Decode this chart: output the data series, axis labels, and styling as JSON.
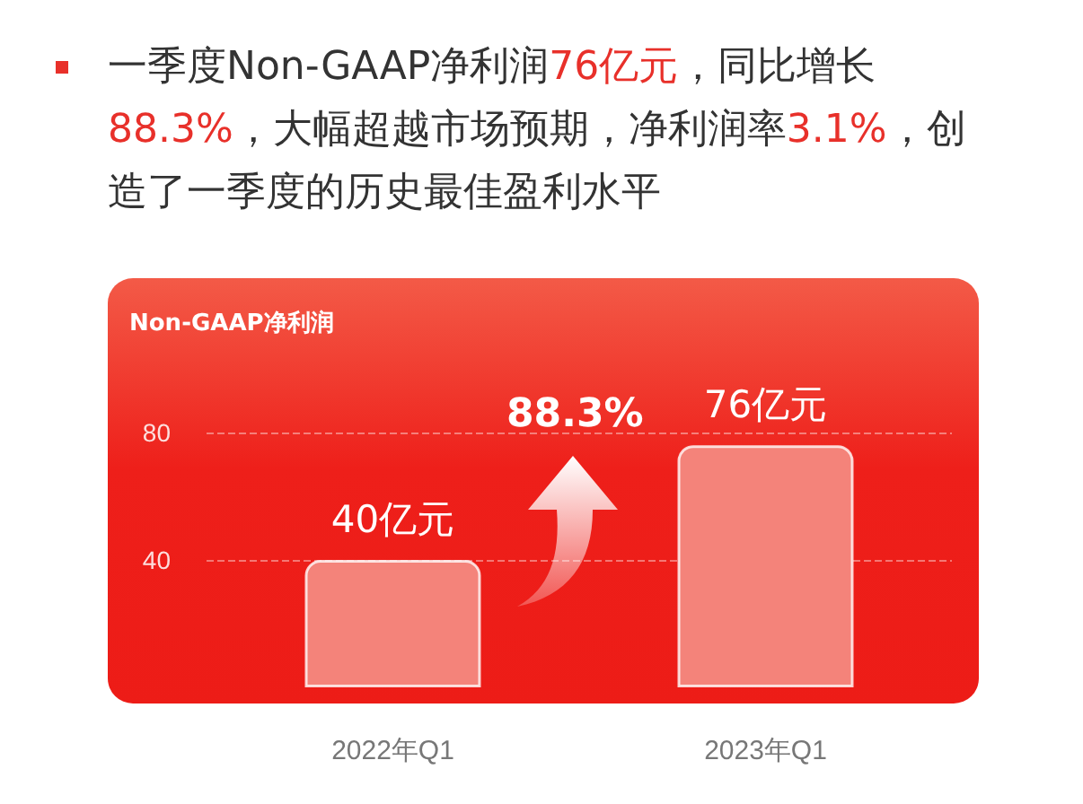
{
  "chart_data": {
    "type": "bar",
    "title": "一季度Non-GAAP净利润76亿元，同比增长88.3%，大幅超越市场预期，净利润率3.1%，创造了一季度的历史最佳盈利水平",
    "ylabel": "Non-GAAP净利润",
    "categories": [
      "2022年Q1",
      "2023年Q1"
    ],
    "values": [
      40,
      76
    ],
    "value_labels": [
      "40亿元",
      "76亿元"
    ],
    "color": "#f4837a",
    "annotations": [
      "88.3%"
    ],
    "ylim": [
      0,
      80
    ],
    "yticks": [
      40,
      80
    ],
    "grid": "y"
  }
}
